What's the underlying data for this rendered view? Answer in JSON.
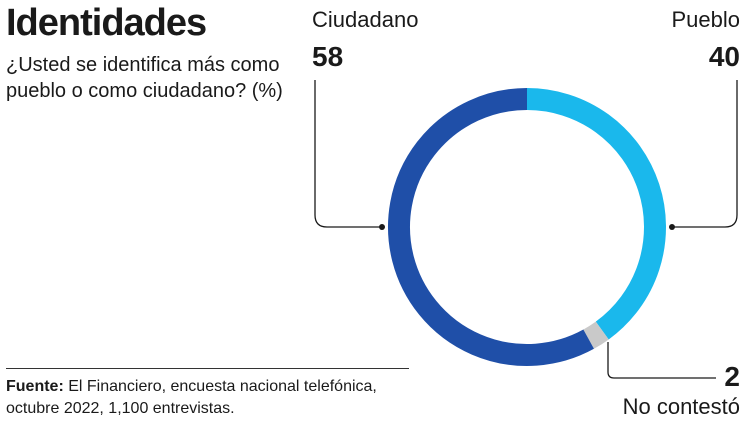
{
  "header": {
    "title": "Identidades",
    "subtitle": "¿Usted se identifica más como pueblo o como ciudadano? (%)"
  },
  "footer": {
    "source_label": "Fuente:",
    "source_text": " El Financiero, encuesta nacional telefónica, octubre 2022, 1,100 entrevistas."
  },
  "chart_data": {
    "type": "pie",
    "donut": true,
    "unit": "%",
    "slices": [
      {
        "label": "Pueblo",
        "value": 40,
        "color": "#1ab8ec"
      },
      {
        "label": "No contestó",
        "value": 2,
        "color": "#c9c9c9"
      },
      {
        "label": "Ciudadano",
        "value": 58,
        "color": "#1f4fa8"
      }
    ],
    "start": "top, clockwise"
  }
}
